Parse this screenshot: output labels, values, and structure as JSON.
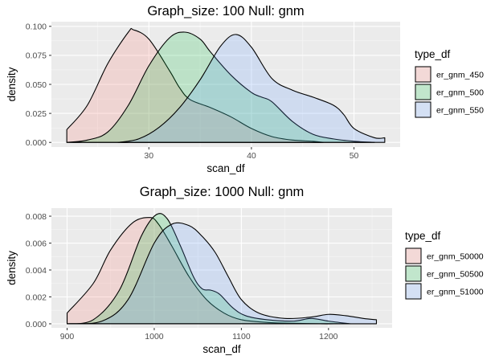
{
  "chart_data": [
    {
      "type": "area",
      "title": "Graph_size: 100 Null: gnm",
      "xlabel": "scan_df",
      "ylabel": "density",
      "xlim": [
        20.5,
        54.5
      ],
      "ylim": [
        -0.004,
        0.104
      ],
      "xticks": [
        30,
        40,
        50
      ],
      "xtick_labels": [
        "30",
        "40",
        "50"
      ],
      "yticks": [
        0.0,
        0.025,
        0.05,
        0.075,
        0.1
      ],
      "ytick_labels": [
        "0.000",
        "0.025",
        "0.050",
        "0.075",
        "0.100"
      ],
      "grid": true,
      "legend": {
        "title": "type_df",
        "position": "right"
      },
      "series": [
        {
          "name": "er_gnm_450",
          "color": "#F8766D",
          "x": [
            22,
            24,
            26,
            28,
            28.5,
            30,
            32,
            33,
            34,
            36,
            38,
            40,
            42,
            44,
            46,
            47
          ],
          "y": [
            0.011,
            0.032,
            0.068,
            0.095,
            0.097,
            0.089,
            0.062,
            0.047,
            0.037,
            0.03,
            0.022,
            0.012,
            0.005,
            0.002,
            0.001,
            0.0
          ]
        },
        {
          "name": "er_gnm_500",
          "color": "#00BA38",
          "x": [
            22,
            24,
            26,
            28,
            30,
            32,
            33.5,
            35,
            36,
            38,
            40,
            41,
            42,
            44,
            46,
            48,
            50,
            52
          ],
          "y": [
            0.0,
            0.002,
            0.009,
            0.032,
            0.066,
            0.09,
            0.095,
            0.089,
            0.078,
            0.058,
            0.043,
            0.039,
            0.035,
            0.018,
            0.007,
            0.003,
            0.001,
            0.0
          ]
        },
        {
          "name": "er_gnm_550",
          "color": "#619CFF",
          "x": [
            27,
            29,
            31,
            33,
            35,
            37,
            38.5,
            40,
            42,
            44,
            46,
            48,
            49,
            50,
            52,
            53
          ],
          "y": [
            0.0,
            0.003,
            0.013,
            0.03,
            0.054,
            0.083,
            0.093,
            0.082,
            0.055,
            0.045,
            0.039,
            0.032,
            0.024,
            0.012,
            0.004,
            0.004
          ]
        }
      ]
    },
    {
      "type": "area",
      "title": "Graph_size: 1000 Null: gnm",
      "xlabel": "scan_df",
      "ylabel": "density",
      "xlim": [
        882,
        1273
      ],
      "ylim": [
        -0.0003,
        0.0086
      ],
      "xticks": [
        900,
        1000,
        1100,
        1200
      ],
      "xtick_labels": [
        "900",
        "1000",
        "1100",
        "1200"
      ],
      "yticks": [
        0.0,
        0.002,
        0.004,
        0.006,
        0.008
      ],
      "ytick_labels": [
        "0.000",
        "0.002",
        "0.004",
        "0.006",
        "0.008"
      ],
      "grid": true,
      "legend": {
        "title": "type_df",
        "position": "right"
      },
      "series": [
        {
          "name": "er_gnm_50000",
          "color": "#F8766D",
          "x": [
            900,
            930,
            950,
            975,
            995,
            1005,
            1020,
            1040,
            1060,
            1080,
            1100,
            1130,
            1160,
            1190,
            1210
          ],
          "y": [
            0.0008,
            0.003,
            0.0055,
            0.0075,
            0.0079,
            0.0074,
            0.0058,
            0.0035,
            0.0018,
            0.0008,
            0.0003,
            0.0001,
            4e-05,
            0.0,
            0.0
          ]
        },
        {
          "name": "er_gnm_50500",
          "color": "#00BA38",
          "x": [
            900,
            930,
            960,
            985,
            1002,
            1015,
            1030,
            1045,
            1055,
            1065,
            1075,
            1090,
            1105,
            1130,
            1160,
            1180,
            1200,
            1225
          ],
          "y": [
            0.0,
            0.0003,
            0.0025,
            0.0065,
            0.0081,
            0.0078,
            0.0058,
            0.0035,
            0.0026,
            0.0025,
            0.0022,
            0.0012,
            0.0006,
            0.0003,
            0.0002,
            0.0004,
            0.0002,
            0.0
          ]
        },
        {
          "name": "er_gnm_51000",
          "color": "#619CFF",
          "x": [
            900,
            940,
            970,
            1000,
            1020,
            1040,
            1055,
            1070,
            1085,
            1100,
            1120,
            1150,
            1180,
            1200,
            1220,
            1240,
            1255
          ],
          "y": [
            0.0,
            0.0002,
            0.0018,
            0.006,
            0.0074,
            0.0073,
            0.0065,
            0.0053,
            0.0035,
            0.0018,
            0.0008,
            0.0004,
            0.0005,
            0.0007,
            0.0006,
            0.0004,
            0.0003
          ]
        }
      ]
    }
  ]
}
